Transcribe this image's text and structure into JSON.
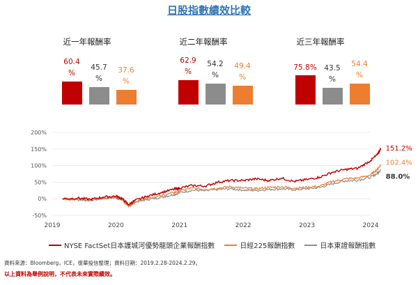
{
  "title": "日股指數績效比較",
  "colors": {
    "nyse": "#c00000",
    "n225": "#ed7d31",
    "topix": "#8c8c8c"
  },
  "bar_panels": [
    {
      "title": "近一年報酬率",
      "values": [
        60.4,
        45.7,
        37.6
      ],
      "labels": [
        [
          "60.4",
          "%"
        ],
        [
          "45.7",
          "%"
        ],
        [
          "37.6",
          "%"
        ]
      ]
    },
    {
      "title": "近二年報酬率",
      "values": [
        62.9,
        54.2,
        49.4
      ],
      "labels": [
        [
          "62.9",
          "%"
        ],
        [
          "54.2",
          "%"
        ],
        [
          "49.4",
          "%"
        ]
      ]
    },
    {
      "title": "近三年報酬率",
      "values": [
        75.8,
        43.5,
        54.4
      ],
      "labels": [
        [
          "75.8%"
        ],
        [
          "43.5",
          "%"
        ],
        [
          "54.4",
          "%"
        ]
      ]
    }
  ],
  "chart_data": {
    "type": "line",
    "ylim": [
      -50,
      200
    ],
    "yticks": [
      "200%",
      "150%",
      "100%",
      "50%",
      "0%",
      "-50%"
    ],
    "ytick_values": [
      200,
      150,
      100,
      50,
      0,
      -50
    ],
    "xticks": [
      "2019",
      "2020",
      "2021",
      "2022",
      "2023",
      "2024"
    ],
    "xtick_values": [
      2019,
      2020,
      2021,
      2022,
      2023,
      2024
    ],
    "series": [
      {
        "name": "NYSE FactSet日本護城河優勢龍頭企業報酬指數",
        "color": "#c00000",
        "end_label": "151.2%",
        "points": [
          [
            2019.16,
            0
          ],
          [
            2019.4,
            2
          ],
          [
            2019.6,
            -2
          ],
          [
            2019.8,
            5
          ],
          [
            2020.0,
            8
          ],
          [
            2020.1,
            0
          ],
          [
            2020.2,
            -18
          ],
          [
            2020.3,
            -5
          ],
          [
            2020.5,
            8
          ],
          [
            2020.7,
            18
          ],
          [
            2020.9,
            28
          ],
          [
            2021.0,
            32
          ],
          [
            2021.2,
            40
          ],
          [
            2021.4,
            38
          ],
          [
            2021.6,
            50
          ],
          [
            2021.8,
            55
          ],
          [
            2022.0,
            55
          ],
          [
            2022.2,
            60
          ],
          [
            2022.4,
            55
          ],
          [
            2022.6,
            62
          ],
          [
            2022.8,
            52
          ],
          [
            2023.0,
            58
          ],
          [
            2023.2,
            65
          ],
          [
            2023.4,
            80
          ],
          [
            2023.6,
            88
          ],
          [
            2023.8,
            92
          ],
          [
            2024.0,
            115
          ],
          [
            2024.1,
            132
          ],
          [
            2024.16,
            151.2
          ]
        ]
      },
      {
        "name": "日經225報酬指數",
        "color": "#ed7d31",
        "end_label": "102.4%",
        "points": [
          [
            2019.16,
            0
          ],
          [
            2019.4,
            -2
          ],
          [
            2019.6,
            -4
          ],
          [
            2019.8,
            3
          ],
          [
            2020.0,
            5
          ],
          [
            2020.1,
            -2
          ],
          [
            2020.2,
            -22
          ],
          [
            2020.3,
            -8
          ],
          [
            2020.5,
            2
          ],
          [
            2020.7,
            8
          ],
          [
            2020.9,
            18
          ],
          [
            2021.0,
            24
          ],
          [
            2021.2,
            32
          ],
          [
            2021.4,
            28
          ],
          [
            2021.6,
            32
          ],
          [
            2021.8,
            36
          ],
          [
            2022.0,
            32
          ],
          [
            2022.2,
            30
          ],
          [
            2022.4,
            34
          ],
          [
            2022.6,
            36
          ],
          [
            2022.8,
            32
          ],
          [
            2023.0,
            34
          ],
          [
            2023.2,
            38
          ],
          [
            2023.4,
            52
          ],
          [
            2023.6,
            60
          ],
          [
            2023.8,
            62
          ],
          [
            2024.0,
            72
          ],
          [
            2024.1,
            88
          ],
          [
            2024.16,
            102.4
          ]
        ]
      },
      {
        "name": "日本東證報酬指數",
        "color": "#8c8c8c",
        "end_label": "88.0%",
        "points": [
          [
            2019.16,
            0
          ],
          [
            2019.4,
            -3
          ],
          [
            2019.6,
            -5
          ],
          [
            2019.8,
            1
          ],
          [
            2020.0,
            3
          ],
          [
            2020.1,
            -4
          ],
          [
            2020.2,
            -24
          ],
          [
            2020.3,
            -10
          ],
          [
            2020.5,
            -2
          ],
          [
            2020.7,
            4
          ],
          [
            2020.9,
            12
          ],
          [
            2021.0,
            18
          ],
          [
            2021.2,
            26
          ],
          [
            2021.4,
            24
          ],
          [
            2021.6,
            28
          ],
          [
            2021.8,
            30
          ],
          [
            2022.0,
            26
          ],
          [
            2022.2,
            25
          ],
          [
            2022.4,
            28
          ],
          [
            2022.6,
            30
          ],
          [
            2022.8,
            27
          ],
          [
            2023.0,
            30
          ],
          [
            2023.2,
            34
          ],
          [
            2023.4,
            45
          ],
          [
            2023.6,
            54
          ],
          [
            2023.8,
            56
          ],
          [
            2024.0,
            65
          ],
          [
            2024.1,
            76
          ],
          [
            2024.16,
            88.0
          ]
        ]
      }
    ]
  },
  "notes": {
    "source": "資料來源：Bloomberg，ICE，復華投信整理；資料日期：2019.2.28-2024.2.29。",
    "disclaimer": "以上資料為舉例說明，不代表未來實際績效。"
  }
}
